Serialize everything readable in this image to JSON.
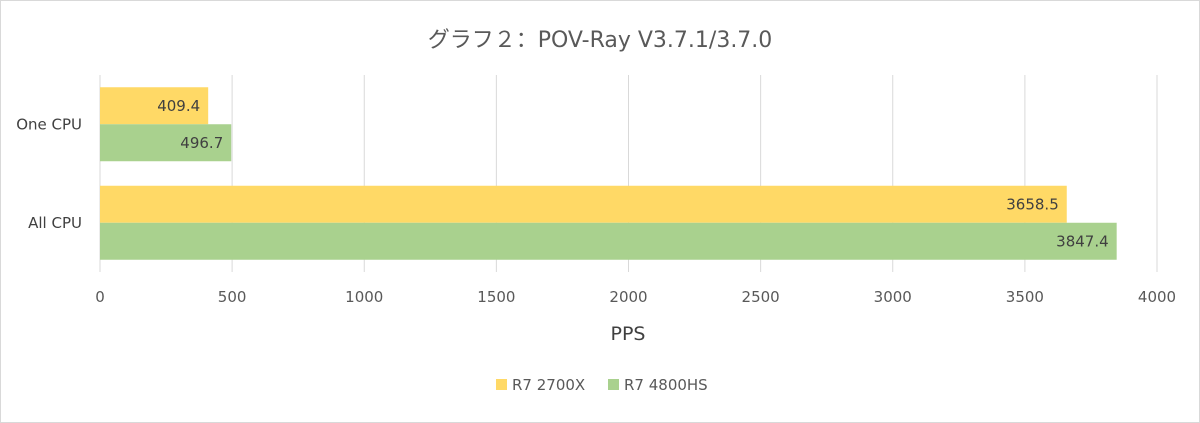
{
  "chart_data": {
    "type": "bar",
    "orientation": "horizontal",
    "title": "グラフ２：POV-Ray V3.7.1/3.7.0",
    "xlabel": "PPS",
    "ylabel": "",
    "categories": [
      "One CPU",
      "All CPU"
    ],
    "series": [
      {
        "name": "R7 2700X",
        "values": [
          409.4,
          3658.5
        ],
        "color": "#ffd966"
      },
      {
        "name": "R7 4800HS",
        "values": [
          496.7,
          3847.4
        ],
        "color": "#a9d18e"
      }
    ],
    "xlim": [
      0,
      4000
    ],
    "xticks": [
      0,
      500,
      1000,
      1500,
      2000,
      2500,
      3000,
      3500,
      4000
    ],
    "grid": true,
    "legend": "bottom",
    "gridline_color": "#d9d9d9",
    "label_color": "#404040"
  }
}
